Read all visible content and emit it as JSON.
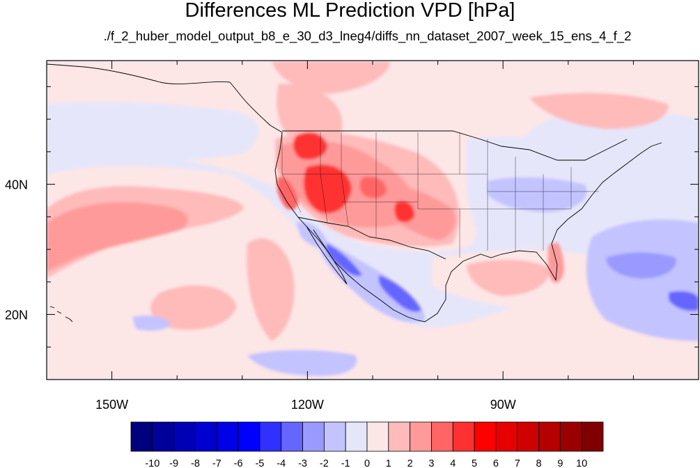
{
  "title": "Differences ML Prediction VPD [hPa]",
  "subtitle": "./f_2_huber_model_output_b8_e_30_d3_lneg4/diffs_nn_dataset_2007_week_15_ens_4_f_2",
  "map": {
    "lon_range": [
      -160,
      -60
    ],
    "lat_range": [
      10,
      59
    ],
    "x_tick_labels": [
      {
        "lon": -150,
        "label": "150W"
      },
      {
        "lon": -120,
        "label": "120W"
      },
      {
        "lon": -90,
        "label": "90W"
      }
    ],
    "y_tick_labels": [
      {
        "lat": 40,
        "label": "40N"
      },
      {
        "lat": 20,
        "label": "20N"
      }
    ],
    "ocean_color": "#e6e6fa",
    "land_background_color": "#fde6e6"
  },
  "colorbar": {
    "labels": [
      "-10",
      "-9",
      "-8",
      "-7",
      "-6",
      "-5",
      "-4",
      "-3",
      "-2",
      "-1",
      "0",
      "1",
      "2",
      "3",
      "4",
      "5",
      "6",
      "7",
      "8",
      "9",
      "10"
    ],
    "colors": [
      "#00007f",
      "#00009a",
      "#0000b5",
      "#0000cf",
      "#0000e6",
      "#0000ff",
      "#3030ff",
      "#6565ff",
      "#9999ff",
      "#c3c3ff",
      "#e6e6fa",
      "#fde6e6",
      "#ffbaba",
      "#ff9a9a",
      "#ff6565",
      "#ff3030",
      "#ff0000",
      "#e60000",
      "#cf0000",
      "#b50000",
      "#9a0000",
      "#7f0000"
    ]
  }
}
